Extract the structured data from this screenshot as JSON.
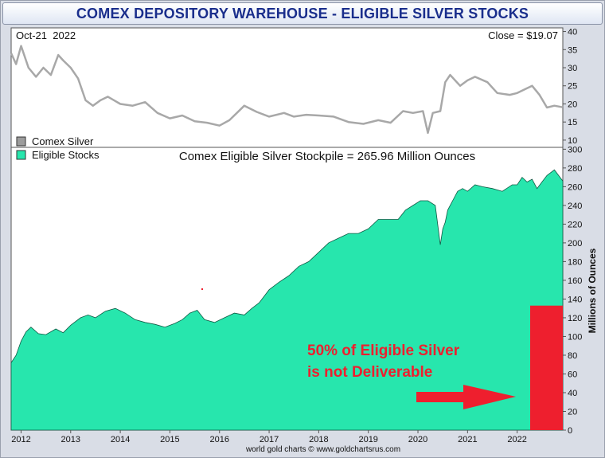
{
  "title": "COMEX DEPOSITORY WAREHOUSE - ELIGIBLE SILVER STOCKS",
  "footer": "world gold charts © www.goldchartsrus.com",
  "colors": {
    "stocks": "#27e6ad",
    "silver": "#a8a8a8",
    "annotation": "#ee1f2e",
    "title": "#1a2e8c"
  },
  "chart_data": [
    {
      "type": "line",
      "date_label": "Oct-21  2022",
      "close_label": "Close = $19.07",
      "legend": [
        "Comex Silver"
      ],
      "y_ticks": [
        10,
        15,
        20,
        25,
        30,
        35,
        40
      ],
      "ylim": [
        8,
        41
      ],
      "xlim": [
        2011.8,
        2022.92
      ],
      "series": [
        {
          "name": "Comex Silver",
          "x": [
            2011.8,
            2011.9,
            2012.0,
            2012.15,
            2012.3,
            2012.45,
            2012.6,
            2012.75,
            2012.85,
            2013.0,
            2013.15,
            2013.3,
            2013.45,
            2013.6,
            2013.75,
            2014.0,
            2014.25,
            2014.5,
            2014.75,
            2015.0,
            2015.25,
            2015.5,
            2015.75,
            2016.0,
            2016.2,
            2016.5,
            2016.75,
            2017.0,
            2017.3,
            2017.5,
            2017.75,
            2018.0,
            2018.3,
            2018.6,
            2018.9,
            2019.2,
            2019.45,
            2019.7,
            2019.9,
            2020.1,
            2020.2,
            2020.3,
            2020.45,
            2020.55,
            2020.65,
            2020.85,
            2021.0,
            2021.15,
            2021.4,
            2021.6,
            2021.85,
            2022.0,
            2022.15,
            2022.3,
            2022.45,
            2022.6,
            2022.75,
            2022.92
          ],
          "y": [
            34,
            31,
            36,
            30,
            27.5,
            30,
            28,
            33.5,
            32,
            30,
            27,
            21,
            19.5,
            21,
            22,
            20,
            19.5,
            20.5,
            17.5,
            16,
            16.8,
            15.2,
            14.8,
            14,
            15.5,
            19.5,
            17.8,
            16.5,
            17.5,
            16.5,
            17,
            16.8,
            16.5,
            15,
            14.5,
            15.5,
            14.8,
            18,
            17.5,
            18,
            12,
            17.5,
            18,
            26,
            28,
            25,
            26.5,
            27.5,
            26,
            23,
            22.5,
            23,
            24,
            25,
            22.5,
            19,
            19.5,
            19.07
          ]
        }
      ]
    },
    {
      "type": "area",
      "title": "Comex Eligible Silver Stockpile = 265.96 Million Ounces",
      "legend": [
        "Eligible Stocks"
      ],
      "ylabel": "Millions of Ounces",
      "y_ticks": [
        0,
        20,
        40,
        60,
        80,
        100,
        120,
        140,
        160,
        180,
        200,
        220,
        240,
        260,
        280,
        300
      ],
      "ylim": [
        0,
        302
      ],
      "xlim": [
        2011.8,
        2022.92
      ],
      "x_ticks": [
        "2012",
        "2013",
        "2014",
        "2015",
        "2016",
        "2017",
        "2018",
        "2019",
        "2020",
        "2021",
        "2022"
      ],
      "series": [
        {
          "name": "Eligible Stocks",
          "x": [
            2011.8,
            2011.9,
            2012.0,
            2012.1,
            2012.2,
            2012.35,
            2012.5,
            2012.7,
            2012.85,
            2013.0,
            2013.2,
            2013.35,
            2013.5,
            2013.7,
            2013.9,
            2014.1,
            2014.3,
            2014.5,
            2014.7,
            2014.9,
            2015.1,
            2015.25,
            2015.4,
            2015.55,
            2015.7,
            2015.9,
            2016.1,
            2016.3,
            2016.5,
            2016.65,
            2016.8,
            2017.0,
            2017.2,
            2017.4,
            2017.6,
            2017.8,
            2018.0,
            2018.2,
            2018.4,
            2018.6,
            2018.8,
            2019.0,
            2019.2,
            2019.4,
            2019.6,
            2019.75,
            2019.9,
            2020.05,
            2020.2,
            2020.35,
            2020.45,
            2020.5,
            2020.55,
            2020.6,
            2020.7,
            2020.8,
            2020.9,
            2021.0,
            2021.15,
            2021.3,
            2021.5,
            2021.7,
            2021.9,
            2022.0,
            2022.1,
            2022.2,
            2022.3,
            2022.4,
            2022.5,
            2022.6,
            2022.75,
            2022.92
          ],
          "y": [
            72,
            80,
            95,
            105,
            110,
            103,
            102,
            108,
            104,
            112,
            120,
            123,
            120,
            127,
            130,
            125,
            118,
            115,
            113,
            110,
            114,
            118,
            125,
            128,
            118,
            115,
            120,
            125,
            123,
            130,
            136,
            150,
            158,
            165,
            175,
            180,
            190,
            200,
            205,
            210,
            210,
            215,
            225,
            225,
            225,
            235,
            240,
            245,
            245,
            240,
            198,
            215,
            222,
            235,
            245,
            255,
            258,
            255,
            262,
            260,
            258,
            255,
            262,
            262,
            270,
            265,
            268,
            258,
            265,
            272,
            278,
            266
          ]
        }
      ],
      "annotation": {
        "line1": "50% of Eligible Silver",
        "line2": "is not Deliverable",
        "bar_value": 133
      }
    }
  ]
}
